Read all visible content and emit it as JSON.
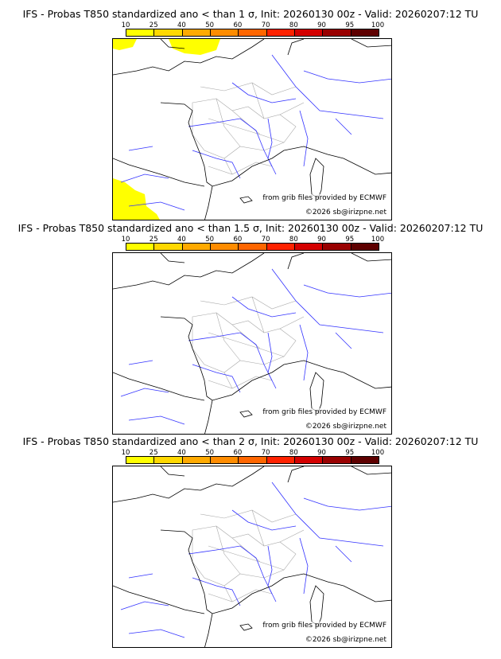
{
  "colorbar": {
    "ticks": [
      "10",
      "25",
      "40",
      "50",
      "60",
      "70",
      "80",
      "90",
      "95",
      "100"
    ],
    "colors": [
      "#ffff00",
      "#ffd800",
      "#ffaa00",
      "#ff8c00",
      "#ff6600",
      "#ff2200",
      "#d40000",
      "#990000",
      "#5e0000"
    ]
  },
  "panels": [
    {
      "title": "IFS - Probas T850  standardized ano < than 1 σ, Init: 20260130 00z - Valid: 20260207:12 TU",
      "has_yellow": true
    },
    {
      "title": "IFS - Probas T850  standardized ano < than 1.5 σ, Init: 20260130 00z - Valid: 20260207:12 TU",
      "has_yellow": false
    },
    {
      "title": "IFS - Probas T850  standardized ano < than 2 σ, Init: 20260130 00z - Valid: 20260207:12 TU",
      "has_yellow": false
    }
  ],
  "credits": {
    "source": "from grib files provided by ECMWF",
    "copyright": "©2026 sb@irizpne.net"
  },
  "colors": {
    "coast": "#000000",
    "rivers": "#3333ff",
    "borders": "#aaaaaa"
  }
}
